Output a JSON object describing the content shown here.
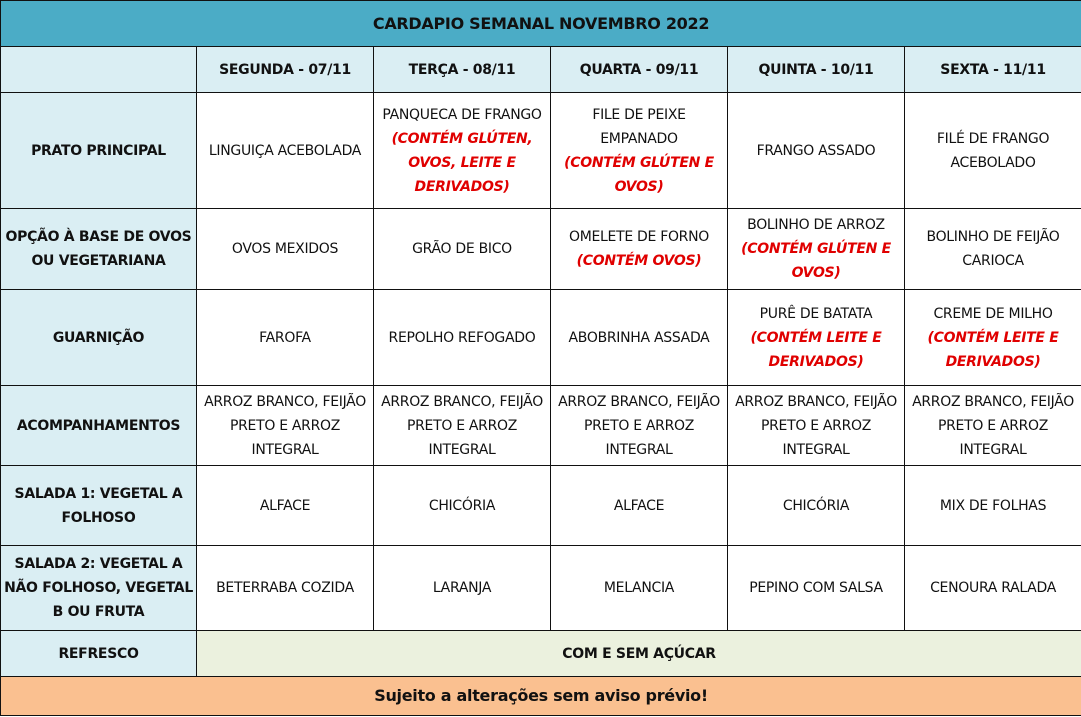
{
  "title": "CARDAPIO SEMANAL NOVEMBRO 2022",
  "days": [
    "SEGUNDA - 07/11",
    "TERÇA - 08/11",
    "QUARTA - 09/11",
    "QUINTA - 10/11",
    "SEXTA - 11/11"
  ],
  "rows": [
    {
      "label": "PRATO PRINCIPAL",
      "cells": [
        {
          "text": "LINGUIÇA ACEBOLADA"
        },
        {
          "text": "PANQUECA DE FRANGO",
          "allergen": "(CONTÉM GLÚTEN, OVOS, LEITE E DERIVADOS)"
        },
        {
          "text": "FILE DE PEIXE EMPANADO",
          "allergen": "(CONTÉM GLÚTEN E OVOS)"
        },
        {
          "text": "FRANGO ASSADO"
        },
        {
          "text": "FILÉ DE FRANGO ACEBOLADO"
        }
      ]
    },
    {
      "label": "OPÇÃO À BASE DE OVOS OU VEGETARIANA",
      "cells": [
        {
          "text": "OVOS MEXIDOS"
        },
        {
          "text": "GRÃO DE BICO"
        },
        {
          "text": "OMELETE DE FORNO",
          "allergen": "(CONTÉM OVOS)"
        },
        {
          "text": "BOLINHO DE ARROZ",
          "allergen": "(CONTÉM GLÚTEN E OVOS)"
        },
        {
          "text": "BOLINHO DE FEIJÃO CARIOCA"
        }
      ]
    },
    {
      "label": "GUARNIÇÃO",
      "cells": [
        {
          "text": "FAROFA"
        },
        {
          "text": "REPOLHO REFOGADO"
        },
        {
          "text": "ABOBRINHA ASSADA"
        },
        {
          "text": "PURÊ DE BATATA",
          "allergen": "(CONTÉM LEITE E DERIVADOS)"
        },
        {
          "text": "CREME DE MILHO",
          "allergen": "(CONTÉM LEITE E DERIVADOS)"
        }
      ]
    },
    {
      "label": "ACOMPANHAMENTOS",
      "cells": [
        {
          "text": "ARROZ BRANCO, FEIJÃO PRETO E ARROZ INTEGRAL"
        },
        {
          "text": "ARROZ BRANCO, FEIJÃO PRETO E ARROZ INTEGRAL"
        },
        {
          "text": "ARROZ BRANCO, FEIJÃO PRETO E ARROZ INTEGRAL"
        },
        {
          "text": "ARROZ BRANCO, FEIJÃO PRETO E ARROZ INTEGRAL"
        },
        {
          "text": "ARROZ BRANCO, FEIJÃO PRETO E ARROZ INTEGRAL"
        }
      ]
    },
    {
      "label": "SALADA 1: VEGETAL A FOLHOSO",
      "cells": [
        {
          "text": "ALFACE"
        },
        {
          "text": "CHICÓRIA"
        },
        {
          "text": "ALFACE"
        },
        {
          "text": "CHICÓRIA"
        },
        {
          "text": "MIX DE FOLHAS"
        }
      ]
    },
    {
      "label": "SALADA 2: VEGETAL A NÃO FOLHOSO, VEGETAL B OU FRUTA",
      "cells": [
        {
          "text": "BETERRABA COZIDA"
        },
        {
          "text": "LARANJA"
        },
        {
          "text": "MELANCIA"
        },
        {
          "text": "PEPINO COM SALSA"
        },
        {
          "text": "CENOURA RALADA"
        }
      ]
    }
  ],
  "refresco": {
    "label": "REFRESCO",
    "value": "COM E SEM AÇÚCAR"
  },
  "footer": "Sujeito a alterações sem aviso prévio!",
  "colors": {
    "title_bg": "#4bacc6",
    "header_bg": "#daeef3",
    "refresco_bg": "#ebf1de",
    "footer_bg": "#fac090",
    "allergen": "#e00000"
  }
}
